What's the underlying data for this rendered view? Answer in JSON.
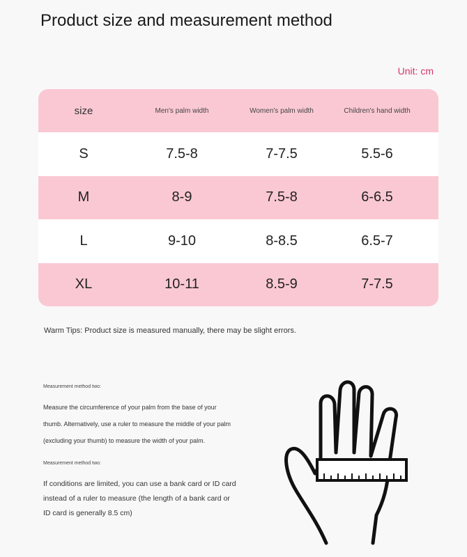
{
  "title": "Product size and measurement method",
  "unit": "Unit: cm",
  "table": {
    "headers": [
      "size",
      "Men's palm width",
      "Women's palm width",
      "Children's hand width"
    ],
    "rows": [
      [
        "S",
        "7.5-8",
        "7-7.5",
        "5.5-6"
      ],
      [
        "M",
        "8-9",
        "7.5-8",
        "6-6.5"
      ],
      [
        "L",
        "9-10",
        "8-8.5",
        "6.5-7"
      ],
      [
        "XL",
        "10-11",
        "8.5-9",
        "7-7.5"
      ]
    ]
  },
  "tips": "Warm Tips: Product size is measured manually, there may be slight errors.",
  "method1": {
    "label": "Measurement method two:",
    "text": "Measure the circumference of your palm from the base of your thumb. Alternatively, use a ruler to measure the middle of your palm (excluding your thumb) to measure the width of your palm."
  },
  "method2": {
    "label": "Measurement method two:",
    "text": "If conditions are limited, you can use a bank card or ID card instead of a ruler to measure (the length of a bank card or ID card is generally 8.5 cm)"
  },
  "colors": {
    "pink": "#fac8d3",
    "accent": "#d63565"
  }
}
